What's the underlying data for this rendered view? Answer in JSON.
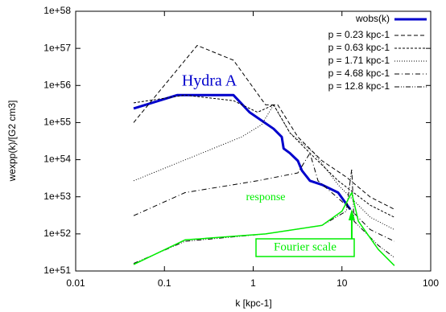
{
  "chart_data": {
    "type": "line",
    "xlabel": "k [kpc-1]",
    "ylabel": "wexpp(k)/[G2 cm3]",
    "xscale": "log",
    "yscale": "log",
    "xlim": [
      0.01,
      100
    ],
    "ylim": [
      1e+51,
      1e+58
    ],
    "xticks": [
      0.01,
      0.1,
      1,
      10,
      100
    ],
    "yticks": [
      {
        "value": 1e+51,
        "label": "1e+51"
      },
      {
        "value": 1e+52,
        "label": "1e+52"
      },
      {
        "value": 1e+53,
        "label": "1e+53"
      },
      {
        "value": 1e+54,
        "label": "1e+54"
      },
      {
        "value": 1e+55,
        "label": "1e+55"
      },
      {
        "value": 1e+56,
        "label": "1e+56"
      },
      {
        "value": 1e+57,
        "label": "1e+57"
      },
      {
        "value": 1e+58,
        "label": "1e+58"
      }
    ],
    "legend": "top-right",
    "series": [
      {
        "name": "wobs(k)",
        "color": "#0000cc",
        "line_style": "bold",
        "x": [
          0.045,
          0.139,
          0.6,
          0.91,
          1.7,
          2.1,
          2.2,
          2.59,
          3.19,
          3.54,
          4.36,
          5.97,
          9.06,
          12.4
        ],
        "values": [
          2.4e+55,
          5.5e+55,
          5.5e+55,
          1.9e+55,
          6.8e+54,
          4.1e+54,
          2e+54,
          1.5e+54,
          9.3e+53,
          5.1e+53,
          2.7e+53,
          2.1e+53,
          1.3e+53,
          4.6e+52
        ]
      },
      {
        "name": "p = 0.23 kpc-1",
        "color": "#000000",
        "line_style": "dashed",
        "x": [
          0.045,
          0.234,
          0.6,
          1.38,
          1.89,
          3.19,
          5.97,
          11.2,
          20.9,
          39.0
        ],
        "values": [
          1e+55,
          1.2e+57,
          4.8e+56,
          3e+55,
          3e+55,
          4.1e+54,
          9.3e+53,
          3.4e+53,
          9.8e+52,
          4.6e+52
        ]
      },
      {
        "name": "p = 0.63 kpc-1",
        "color": "#000000",
        "line_style": "dense-dashed",
        "x": [
          0.045,
          0.171,
          0.6,
          1.12,
          1.7,
          2.59,
          4.36,
          9.06,
          20.9,
          39.0
        ],
        "values": [
          3.4e+55,
          5.5e+55,
          3.9e+55,
          1.9e+55,
          3e+55,
          5.3e+54,
          1.5e+54,
          2.7e+53,
          5.9e+52,
          2.8e+52
        ]
      },
      {
        "name": "p = 1.71 kpc-1",
        "color": "#000000",
        "line_style": "dotted",
        "x": [
          0.045,
          0.74,
          1.24,
          1.7,
          2.59,
          4.84,
          9.06,
          20.9,
          39.0
        ],
        "values": [
          2.7e+53,
          4.1e+54,
          8.7e+54,
          3e+55,
          5.3e+54,
          1.5e+54,
          2.1e+53,
          2.8e+52,
          1.3e+52
        ]
      },
      {
        "name": "p = 4.68 kpc-1",
        "color": "#000000",
        "line_style": "dashdot",
        "x": [
          0.045,
          0.171,
          1.12,
          3.19,
          4.36,
          5.37,
          11.2,
          20.9,
          39.0
        ],
        "values": [
          3.1e+52,
          1.3e+53,
          2.7e+53,
          4.4e+53,
          1.5e+54,
          2.7e+53,
          5.9e+52,
          1.3e+52,
          6.3e+51
        ]
      },
      {
        "name": "p = 12.8 kpc-1",
        "color": "#000000",
        "line_style": "dash-dot-dot",
        "x": [
          0.045,
          0.171,
          1.38,
          5.97,
          11.2,
          12.9,
          13.7,
          25.7,
          39.0
        ],
        "values": [
          1.6e+51,
          6.3e+51,
          1e+52,
          1.7e+52,
          4.1e+52,
          5.6e+53,
          2.2e+52,
          4.9e+51,
          2.3e+51
        ]
      },
      {
        "name": "response",
        "color": "#00ee00",
        "line_style": "solid",
        "label_on_line": true,
        "x": [
          0.045,
          0.171,
          1.38,
          5.97,
          10.0,
          12.9,
          15.3,
          25.7,
          39.0
        ],
        "values": [
          1.5e+51,
          6.9e+51,
          1e+52,
          1.7e+52,
          4.1e+52,
          1.3e+53,
          2.2e+52,
          3.8e+51,
          1.4e+51
        ]
      }
    ],
    "annotations": [
      {
        "text": "Hydra A",
        "color": "#0000cc"
      },
      {
        "text": "Fourier scale",
        "color": "#00ee00",
        "x": 12.9
      }
    ]
  }
}
